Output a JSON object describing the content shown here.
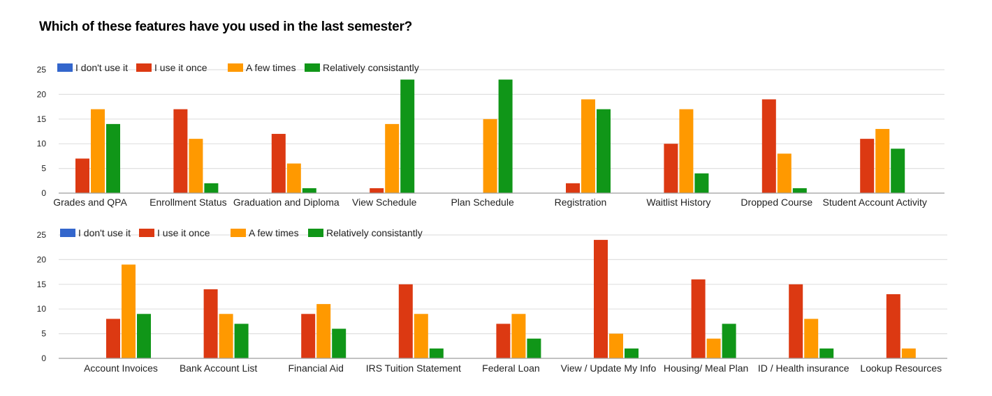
{
  "page": {
    "title": "Which of these features have you used in the last semester?"
  },
  "colors": {
    "I don't use it": "#3366cc",
    "I use it once": "#dc3912",
    "A few times": "#ff9900",
    "Relatively consistantly": "#109618",
    "gridline": "#e0e0e0",
    "baseline": "#9e9e9e"
  },
  "chart_data": [
    {
      "type": "bar",
      "title": "",
      "xlabel": "",
      "ylabel": "",
      "ylim": [
        0,
        25
      ],
      "yticks": [
        0,
        5,
        10,
        15,
        20,
        25
      ],
      "grid": true,
      "legend_position": "top-left",
      "categories": [
        "Grades and QPA",
        "Enrollment Status",
        "Graduation and Diploma",
        "View Schedule",
        "Plan Schedule",
        "Registration",
        "Waitlist History",
        "Dropped Course",
        "Student Account Activity"
      ],
      "series": [
        {
          "name": "I don't use it",
          "values": [
            0,
            0,
            0,
            0,
            0,
            0,
            0,
            0,
            0
          ]
        },
        {
          "name": "I use it once",
          "values": [
            7,
            17,
            12,
            1,
            0,
            2,
            10,
            19,
            11
          ]
        },
        {
          "name": "A few times",
          "values": [
            17,
            11,
            6,
            14,
            15,
            19,
            17,
            8,
            13
          ]
        },
        {
          "name": "Relatively consistantly",
          "values": [
            14,
            2,
            1,
            23,
            23,
            17,
            4,
            1,
            9
          ]
        }
      ]
    },
    {
      "type": "bar",
      "title": "",
      "xlabel": "",
      "ylabel": "",
      "ylim": [
        0,
        25
      ],
      "yticks": [
        0,
        5,
        10,
        15,
        20,
        25
      ],
      "grid": true,
      "legend_position": "top-left",
      "categories": [
        "Account Invoices",
        "Bank Account List",
        "Financial Aid",
        "IRS Tuition Statement",
        "Federal Loan",
        "View / Update My Info",
        "Housing/ Meal Plan",
        "ID / Health insurance",
        "Lookup Resources"
      ],
      "series": [
        {
          "name": "I don't use it",
          "values": [
            0,
            0,
            0,
            0,
            0,
            0,
            0,
            0,
            0
          ]
        },
        {
          "name": "I use it once",
          "values": [
            8,
            14,
            9,
            15,
            7,
            24,
            16,
            15,
            13
          ]
        },
        {
          "name": "A few times",
          "values": [
            19,
            9,
            11,
            9,
            9,
            5,
            4,
            8,
            2
          ]
        },
        {
          "name": "Relatively consistantly",
          "values": [
            9,
            7,
            6,
            2,
            4,
            2,
            7,
            2,
            0
          ]
        }
      ]
    }
  ]
}
